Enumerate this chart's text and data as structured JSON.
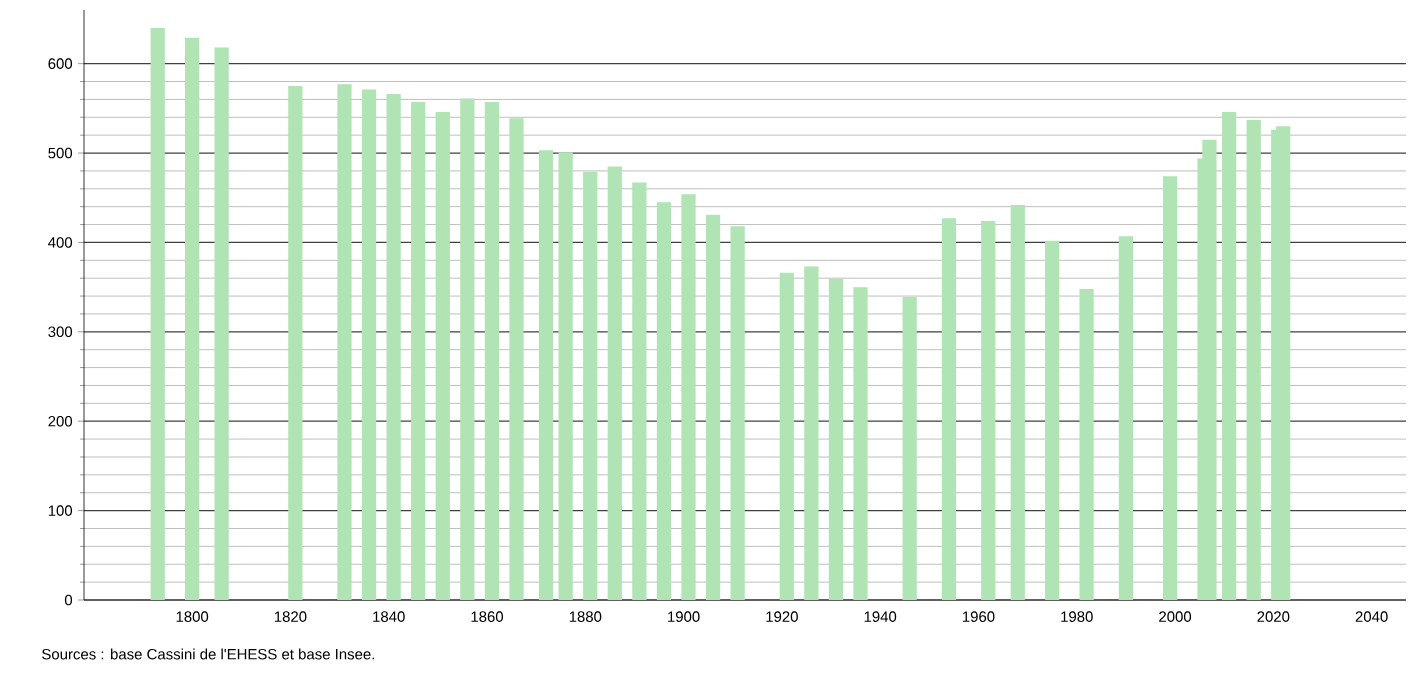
{
  "chart_data": {
    "type": "bar",
    "x": [
      1793,
      1800,
      1806,
      1821,
      1831,
      1836,
      1841,
      1846,
      1851,
      1856,
      1861,
      1866,
      1872,
      1876,
      1881,
      1886,
      1891,
      1896,
      1901,
      1906,
      1911,
      1921,
      1926,
      1931,
      1936,
      1946,
      1954,
      1962,
      1968,
      1975,
      1982,
      1990,
      1999,
      2006,
      2007,
      2011,
      2016,
      2021,
      2022
    ],
    "values": [
      640,
      629,
      618,
      575,
      577,
      571,
      566,
      557,
      546,
      561,
      557,
      539,
      503,
      501,
      479,
      485,
      467,
      445,
      454,
      431,
      418,
      366,
      373,
      359,
      350,
      339,
      427,
      424,
      442,
      402,
      348,
      407,
      474,
      494,
      515,
      546,
      537,
      526,
      530
    ],
    "color": "#b0e4b4",
    "xlim": [
      1778,
      2047
    ],
    "xticks": [
      1800,
      1820,
      1840,
      1860,
      1880,
      1900,
      1920,
      1940,
      1960,
      1980,
      2000,
      2020,
      2040
    ],
    "ylim": [
      0,
      660
    ],
    "yticks": [
      0,
      100,
      200,
      300,
      400,
      500,
      600
    ],
    "grid": "y",
    "annotations": [
      "Sources : base Cassini de l'EHESS et base Insee."
    ]
  }
}
